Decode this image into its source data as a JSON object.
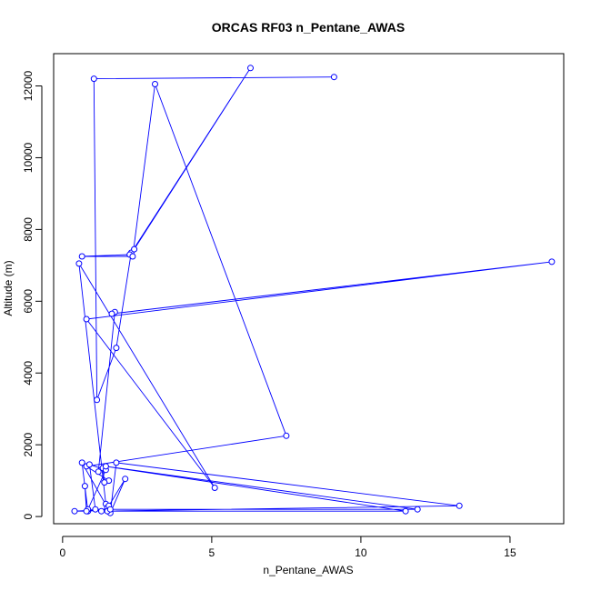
{
  "chart_data": {
    "type": "line",
    "title": "ORCAS RF03 n_Pentane_AWAS",
    "xlabel": "n_Pentane_AWAS",
    "ylabel": "Altitude (m)",
    "xlim": [
      -0.3,
      16.8
    ],
    "ylim": [
      -200,
      12900
    ],
    "xticks": [
      0,
      5,
      10,
      15
    ],
    "yticks": [
      0,
      2000,
      4000,
      6000,
      8000,
      10000,
      12000
    ],
    "color": "#0000ff",
    "series": [
      {
        "x": [
          9.1,
          1.05,
          1.15,
          1.8,
          2.3,
          6.3,
          2.4,
          2.25,
          0.65,
          2.35,
          3.1,
          7.5,
          0.8,
          1.55,
          1.4,
          1.35,
          1.2,
          1.75,
          1.65,
          16.4,
          0.8,
          5.1,
          0.55,
          1.45,
          1.5,
          0.85,
          0.65,
          1.5,
          1.55,
          2.1,
          1.6,
          1.8,
          13.3,
          1.3,
          0.85,
          1.45,
          0.9,
          1.1,
          11.9,
          1.45,
          11.5,
          1.5,
          1.6,
          0.4,
          0.8,
          0.75
        ],
        "y": [
          12250,
          12200,
          3250,
          4700,
          7350,
          12500,
          7450,
          7300,
          7250,
          7250,
          12050,
          2250,
          1400,
          1000,
          950,
          1350,
          1250,
          5700,
          5650,
          7100,
          5500,
          800,
          7050,
          350,
          200,
          150,
          1500,
          250,
          300,
          1050,
          100,
          1500,
          300,
          150,
          200,
          1300,
          1450,
          200,
          200,
          1400,
          150,
          150,
          200,
          150,
          150,
          850
        ]
      }
    ]
  }
}
